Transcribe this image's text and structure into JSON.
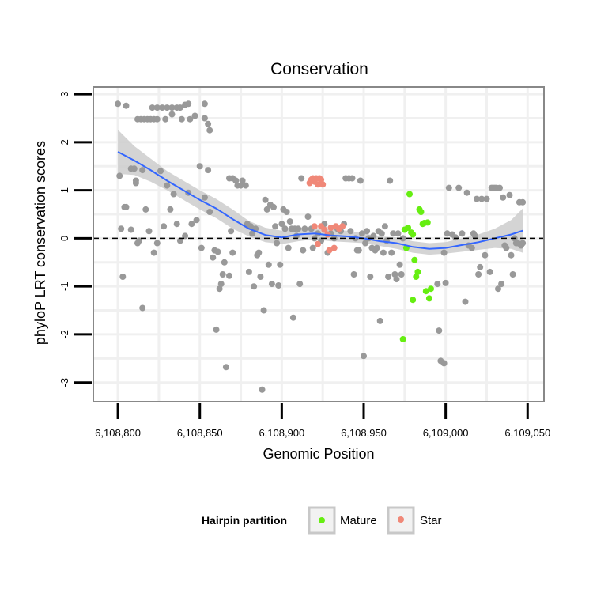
{
  "chart_data": {
    "type": "scatter",
    "title": "Conservation",
    "xlabel": "Genomic Position",
    "ylabel": "phyloP LRT conservation scores",
    "xlim": [
      6108785,
      6109060
    ],
    "ylim": [
      -3.4,
      3.15
    ],
    "x_ticks": [
      6108800,
      6108850,
      6108900,
      6108950,
      6109000,
      6109050
    ],
    "x_tick_labels": [
      "6,108,800",
      "6,108,850",
      "6,108,900",
      "6,108,950",
      "6,109,000",
      "6,109,050"
    ],
    "y_ticks": [
      -3,
      -2,
      -1,
      0,
      1,
      2,
      3
    ],
    "y_tick_labels": [
      "-3",
      "-2",
      "-1",
      "0",
      "1",
      "2",
      "3"
    ],
    "reference_line": {
      "y": 0,
      "style": "dashed",
      "color": "#000000"
    },
    "colors": {
      "other": "#999999",
      "Mature": "#66ee11",
      "Star": "#f08878",
      "smooth": "#3366ff",
      "ribbon": "#cccccc",
      "panel_border": "#888888",
      "grid": "#f0f0f0"
    },
    "legend": {
      "title": "Hairpin partition",
      "position": "bottom",
      "entries": [
        {
          "label": "Mature",
          "color": "#66ee11"
        },
        {
          "label": "Star",
          "color": "#f08878"
        }
      ]
    },
    "smooth": {
      "method": "loess",
      "x": [
        6108800,
        6108810,
        6108820,
        6108830,
        6108840,
        6108850,
        6108860,
        6108870,
        6108880,
        6108890,
        6108900,
        6108910,
        6108920,
        6108930,
        6108940,
        6108950,
        6108960,
        6108970,
        6108980,
        6108990,
        6109000,
        6109010,
        6109020,
        6109030,
        6109040,
        6109047
      ],
      "y": [
        1.8,
        1.62,
        1.42,
        1.2,
        1.0,
        0.8,
        0.62,
        0.4,
        0.2,
        0.07,
        0.02,
        0.08,
        0.1,
        0.06,
        0.04,
        0.0,
        -0.06,
        -0.1,
        -0.18,
        -0.22,
        -0.2,
        -0.14,
        -0.08,
        0.0,
        0.08,
        0.16
      ],
      "lower": [
        1.34,
        1.32,
        1.18,
        1.0,
        0.8,
        0.6,
        0.42,
        0.2,
        0.04,
        -0.08,
        -0.12,
        -0.06,
        -0.02,
        -0.06,
        -0.08,
        -0.1,
        -0.16,
        -0.22,
        -0.3,
        -0.34,
        -0.32,
        -0.28,
        -0.24,
        -0.2,
        -0.22,
        -0.3
      ],
      "upper": [
        2.26,
        1.92,
        1.66,
        1.4,
        1.2,
        1.0,
        0.82,
        0.6,
        0.36,
        0.22,
        0.16,
        0.22,
        0.22,
        0.18,
        0.16,
        0.1,
        0.04,
        0.02,
        -0.06,
        -0.1,
        -0.08,
        0.0,
        0.08,
        0.2,
        0.38,
        0.62
      ]
    },
    "series": [
      {
        "name": "Other",
        "points": [
          [
            6108800,
            2.8
          ],
          [
            6108805,
            2.76
          ],
          [
            6108808,
            1.45
          ],
          [
            6108810,
            1.45
          ],
          [
            6108811,
            1.2
          ],
          [
            6108812,
            -0.1
          ],
          [
            6108815,
            1.42
          ],
          [
            6108818,
            2.48
          ],
          [
            6108820,
            2.48
          ],
          [
            6108822,
            2.48
          ],
          [
            6108824,
            2.48
          ],
          [
            6108812,
            2.48
          ],
          [
            6108814,
            2.48
          ],
          [
            6108816,
            2.48
          ],
          [
            6108821,
            2.72
          ],
          [
            6108824,
            2.72
          ],
          [
            6108827,
            2.72
          ],
          [
            6108830,
            2.72
          ],
          [
            6108833,
            2.72
          ],
          [
            6108836,
            2.72
          ],
          [
            6108838,
            2.72
          ],
          [
            6108841,
            2.78
          ],
          [
            6108843,
            2.8
          ],
          [
            6108829,
            2.48
          ],
          [
            6108839,
            2.48
          ],
          [
            6108844,
            2.48
          ],
          [
            6108833,
            2.58
          ],
          [
            6108847,
            2.55
          ],
          [
            6108853,
            2.8
          ],
          [
            6108853,
            2.5
          ],
          [
            6108855,
            2.38
          ],
          [
            6108856,
            2.25
          ],
          [
            6108850,
            1.5
          ],
          [
            6108855,
            1.42
          ],
          [
            6108801,
            1.3
          ],
          [
            6108802,
            0.2
          ],
          [
            6108803,
            -0.8
          ],
          [
            6108804,
            0.65
          ],
          [
            6108805,
            0.65
          ],
          [
            6108808,
            0.18
          ],
          [
            6108811,
            1.15
          ],
          [
            6108813,
            -0.05
          ],
          [
            6108815,
            -1.45
          ],
          [
            6108817,
            0.6
          ],
          [
            6108819,
            0.15
          ],
          [
            6108822,
            -0.3
          ],
          [
            6108824,
            -0.1
          ],
          [
            6108826,
            1.4
          ],
          [
            6108828,
            0.25
          ],
          [
            6108830,
            1.1
          ],
          [
            6108832,
            0.6
          ],
          [
            6108834,
            0.92
          ],
          [
            6108836,
            0.3
          ],
          [
            6108838,
            -0.05
          ],
          [
            6108841,
            0.05
          ],
          [
            6108843,
            0.95
          ],
          [
            6108845,
            0.3
          ],
          [
            6108848,
            0.38
          ],
          [
            6108851,
            -0.2
          ],
          [
            6108853,
            0.85
          ],
          [
            6108856,
            0.55
          ],
          [
            6108858,
            -0.4
          ],
          [
            6108859,
            -0.25
          ],
          [
            6108860,
            -1.9
          ],
          [
            6108861,
            -0.28
          ],
          [
            6108862,
            -1.05
          ],
          [
            6108863,
            -0.95
          ],
          [
            6108864,
            -0.75
          ],
          [
            6108865,
            -0.5
          ],
          [
            6108866,
            -2.68
          ],
          [
            6108868,
            -0.78
          ],
          [
            6108869,
            0.15
          ],
          [
            6108870,
            -0.3
          ],
          [
            6108868,
            1.25
          ],
          [
            6108870,
            1.25
          ],
          [
            6108872,
            1.2
          ],
          [
            6108873,
            1.1
          ],
          [
            6108875,
            1.1
          ],
          [
            6108876,
            1.2
          ],
          [
            6108878,
            1.1
          ],
          [
            6108879,
            0.3
          ],
          [
            6108880,
            -0.7
          ],
          [
            6108881,
            0.25
          ],
          [
            6108882,
            0.1
          ],
          [
            6108883,
            -1.0
          ],
          [
            6108884,
            0.2
          ],
          [
            6108885,
            -0.35
          ],
          [
            6108886,
            -0.3
          ],
          [
            6108887,
            -0.8
          ],
          [
            6108888,
            -3.15
          ],
          [
            6108889,
            -1.5
          ],
          [
            6108890,
            0.8
          ],
          [
            6108891,
            0.6
          ],
          [
            6108892,
            -0.55
          ],
          [
            6108893,
            0.7
          ],
          [
            6108894,
            -0.95
          ],
          [
            6108895,
            0.65
          ],
          [
            6108896,
            0.25
          ],
          [
            6108897,
            -0.1
          ],
          [
            6108898,
            -0.98
          ],
          [
            6108899,
            -0.55
          ],
          [
            6108900,
            0.3
          ],
          [
            6108901,
            0.6
          ],
          [
            6108902,
            0.2
          ],
          [
            6108903,
            0.55
          ],
          [
            6108904,
            -0.2
          ],
          [
            6108905,
            0.35
          ],
          [
            6108906,
            0.2
          ],
          [
            6108907,
            -1.65
          ],
          [
            6108908,
            0.2
          ],
          [
            6108909,
            0.05
          ],
          [
            6108910,
            0.2
          ],
          [
            6108911,
            -0.95
          ],
          [
            6108912,
            1.25
          ],
          [
            6108913,
            -0.25
          ],
          [
            6108914,
            0.2
          ],
          [
            6108916,
            0.45
          ],
          [
            6108918,
            0.2
          ],
          [
            6108919,
            -0.2
          ],
          [
            6108920,
            0.0
          ],
          [
            6108922,
            0.1
          ],
          [
            6108924,
            -0.05
          ],
          [
            6108926,
            0.3
          ],
          [
            6108928,
            -0.3
          ],
          [
            6108930,
            0.1
          ],
          [
            6108932,
            0.0
          ],
          [
            6108934,
            0.2
          ],
          [
            6108936,
            0.15
          ],
          [
            6108938,
            0.3
          ],
          [
            6108939,
            1.25
          ],
          [
            6108941,
            1.25
          ],
          [
            6108942,
            0.15
          ],
          [
            6108943,
            1.25
          ],
          [
            6108944,
            -0.75
          ],
          [
            6108945,
            0.0
          ],
          [
            6108946,
            -0.25
          ],
          [
            6108947,
            -0.25
          ],
          [
            6108948,
            1.2
          ],
          [
            6108949,
            0.1
          ],
          [
            6108950,
            -2.45
          ],
          [
            6108951,
            -0.1
          ],
          [
            6108952,
            0.15
          ],
          [
            6108953,
            0.0
          ],
          [
            6108954,
            -0.8
          ],
          [
            6108955,
            -0.2
          ],
          [
            6108956,
            0.05
          ],
          [
            6108957,
            -0.25
          ],
          [
            6108958,
            -0.2
          ],
          [
            6108959,
            0.15
          ],
          [
            6108960,
            -1.72
          ],
          [
            6108961,
            0.1
          ],
          [
            6108962,
            -0.3
          ],
          [
            6108963,
            0.25
          ],
          [
            6108964,
            -0.05
          ],
          [
            6108965,
            -0.8
          ],
          [
            6108966,
            1.2
          ],
          [
            6108967,
            -0.3
          ],
          [
            6108968,
            0.1
          ],
          [
            6108969,
            -0.75
          ],
          [
            6108970,
            -0.85
          ],
          [
            6108971,
            0.1
          ],
          [
            6108972,
            -0.55
          ],
          [
            6108973,
            -0.75
          ],
          [
            6108974,
            0.0
          ],
          [
            6108995,
            -0.95
          ],
          [
            6108996,
            -1.92
          ],
          [
            6108997,
            -2.55
          ],
          [
            6108999,
            -2.6
          ],
          [
            6109000,
            -0.93
          ],
          [
            6109001,
            0.1
          ],
          [
            6108999,
            -0.3
          ],
          [
            6109002,
            1.05
          ],
          [
            6109004,
            0.08
          ],
          [
            6109006,
            0.02
          ],
          [
            6109008,
            1.05
          ],
          [
            6109010,
            0.1
          ],
          [
            6109012,
            -1.32
          ],
          [
            6109013,
            0.95
          ],
          [
            6109014,
            -0.15
          ],
          [
            6109016,
            -0.2
          ],
          [
            6109017,
            0.1
          ],
          [
            6109018,
            0.05
          ],
          [
            6109019,
            0.82
          ],
          [
            6109020,
            -0.75
          ],
          [
            6109021,
            -0.6
          ],
          [
            6109022,
            0.82
          ],
          [
            6109024,
            -0.35
          ],
          [
            6109025,
            0.82
          ],
          [
            6109027,
            -0.7
          ],
          [
            6109028,
            1.05
          ],
          [
            6109029,
            1.05
          ],
          [
            6109030,
            1.05
          ],
          [
            6109031,
            1.05
          ],
          [
            6109032,
            -1.05
          ],
          [
            6109033,
            1.05
          ],
          [
            6109034,
            -0.95
          ],
          [
            6109035,
            0.85
          ],
          [
            6109036,
            -0.15
          ],
          [
            6109037,
            -0.2
          ],
          [
            6109039,
            0.9
          ],
          [
            6109040,
            -0.35
          ],
          [
            6109041,
            -0.75
          ],
          [
            6109042,
            0.0
          ],
          [
            6109043,
            -0.1
          ],
          [
            6109044,
            -0.1
          ],
          [
            6109045,
            0.75
          ],
          [
            6109046,
            -0.15
          ],
          [
            6109047,
            0.75
          ],
          [
            6109047,
            -0.1
          ]
        ]
      },
      {
        "name": "Mature",
        "points": [
          [
            6108974,
            -2.1
          ],
          [
            6108975,
            0.18
          ],
          [
            6108976,
            -0.2
          ],
          [
            6108977,
            0.22
          ],
          [
            6108978,
            0.92
          ],
          [
            6108979,
            0.12
          ],
          [
            6108980,
            0.08
          ],
          [
            6108980,
            -1.28
          ],
          [
            6108981,
            -0.45
          ],
          [
            6108982,
            -0.8
          ],
          [
            6108983,
            -0.7
          ],
          [
            6108984,
            0.6
          ],
          [
            6108985,
            0.55
          ],
          [
            6108986,
            0.3
          ],
          [
            6108987,
            0.32
          ],
          [
            6108988,
            -1.1
          ],
          [
            6108989,
            0.33
          ],
          [
            6108990,
            -1.25
          ],
          [
            6108991,
            -1.05
          ]
        ]
      },
      {
        "name": "Star",
        "points": [
          [
            6108917,
            1.15
          ],
          [
            6108918,
            1.22
          ],
          [
            6108919,
            1.25
          ],
          [
            6108920,
            1.18
          ],
          [
            6108921,
            1.25
          ],
          [
            6108922,
            1.12
          ],
          [
            6108923,
            1.25
          ],
          [
            6108924,
            1.22
          ],
          [
            6108925,
            1.12
          ],
          [
            6108920,
            0.25
          ],
          [
            6108922,
            -0.12
          ],
          [
            6108924,
            0.25
          ],
          [
            6108926,
            0.18
          ],
          [
            6108928,
            0.08
          ],
          [
            6108929,
            -0.25
          ],
          [
            6108930,
            0.22
          ],
          [
            6108932,
            -0.2
          ],
          [
            6108933,
            0.25
          ],
          [
            6108935,
            0.2
          ],
          [
            6108937,
            0.25
          ]
        ]
      }
    ]
  }
}
